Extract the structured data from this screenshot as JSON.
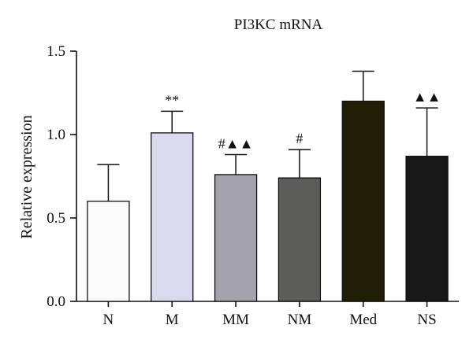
{
  "chart_data": {
    "type": "bar",
    "title": "PI3KC mRNA",
    "xlabel": "",
    "ylabel": "Relative expression",
    "ylim": [
      0,
      1.5
    ],
    "yticks": [
      "0.0",
      "0.5",
      "1.0",
      "1.5"
    ],
    "categories": [
      "N",
      "M",
      "MM",
      "NM",
      "Med",
      "NS"
    ],
    "values": [
      0.6,
      1.01,
      0.76,
      0.74,
      1.2,
      0.87
    ],
    "errors": [
      0.22,
      0.13,
      0.12,
      0.17,
      0.18,
      0.29
    ],
    "annotations": [
      "",
      "**",
      "#▲▲",
      "#",
      "",
      "▲▲"
    ],
    "colors": [
      "#fbfbfb",
      "#d9daee",
      "#a4a3ab",
      "#5c5d59",
      "#201e05",
      "#181818"
    ],
    "grid": false
  }
}
